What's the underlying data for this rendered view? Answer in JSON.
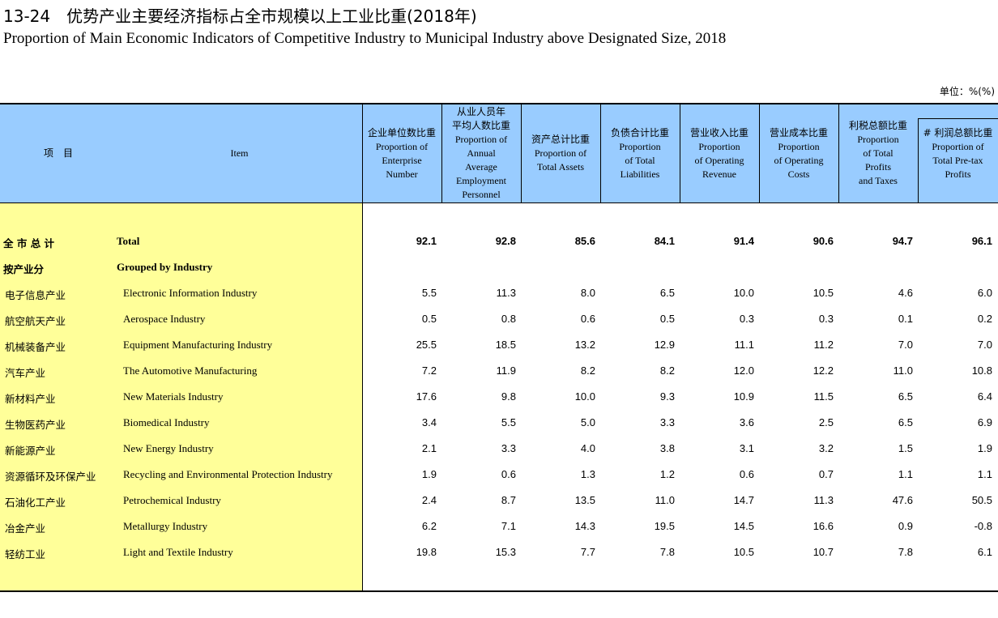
{
  "title_cn": "13-24　优势产业主要经济指标占全市规模以上工业比重(2018年)",
  "title_en": "Proportion of Main Economic Indicators of Competitive Industry to Municipal Industry above Designated Size, 2018",
  "unit": "单位：%(%)",
  "header": {
    "item_cn": "项　目",
    "item_en": "Item",
    "columns": [
      {
        "cn": "企业单位数比重",
        "en": "Proportion of\nEnterprise\nNumber"
      },
      {
        "cn": "从业人员年\n平均人数比重",
        "en": "Proportion of\nAnnual\nAverage\nEmployment\nPersonnel"
      },
      {
        "cn": "资产总计比重",
        "en": "Proportion of\nTotal Assets"
      },
      {
        "cn": "负债合计比重",
        "en": "Proportion\nof Total\nLiabilities"
      },
      {
        "cn": "营业收入比重",
        "en": "Proportion\nof Operating\nRevenue"
      },
      {
        "cn": "营业成本比重",
        "en": "Proportion\nof Operating\nCosts"
      },
      {
        "cn": "利税总额比重",
        "en": "Proportion\nof Total\nProfits\nand Taxes"
      },
      {
        "cn": "# 利润总额比重",
        "en": "Proportion of\nTotal Pre-tax\nProfits"
      }
    ]
  },
  "rows": [
    {
      "cn": "全 市 总 计",
      "en": "Total",
      "level": 0,
      "values": [
        "92.1",
        "92.8",
        "85.6",
        "84.1",
        "91.4",
        "90.6",
        "94.7",
        "96.1"
      ]
    },
    {
      "cn": "按产业分",
      "en": "Grouped by Industry",
      "level": 0,
      "values": [
        "",
        "",
        "",
        "",
        "",
        "",
        "",
        ""
      ]
    },
    {
      "cn": "电子信息产业",
      "en": "Electronic Information Industry",
      "level": 1,
      "values": [
        "5.5",
        "11.3",
        "8.0",
        "6.5",
        "10.0",
        "10.5",
        "4.6",
        "6.0"
      ]
    },
    {
      "cn": "航空航天产业",
      "en": "Aerospace Industry",
      "level": 1,
      "values": [
        "0.5",
        "0.8",
        "0.6",
        "0.5",
        "0.3",
        "0.3",
        "0.1",
        "0.2"
      ]
    },
    {
      "cn": "机械装备产业",
      "en": "Equipment Manufacturing Industry",
      "level": 1,
      "values": [
        "25.5",
        "18.5",
        "13.2",
        "12.9",
        "11.1",
        "11.2",
        "7.0",
        "7.0"
      ]
    },
    {
      "cn": "汽车产业",
      "en": "The Automotive Manufacturing",
      "level": 1,
      "values": [
        "7.2",
        "11.9",
        "8.2",
        "8.2",
        "12.0",
        "12.2",
        "11.0",
        "10.8"
      ]
    },
    {
      "cn": "新材料产业",
      "en": "New Materials Industry",
      "level": 1,
      "values": [
        "17.6",
        "9.8",
        "10.0",
        "9.3",
        "10.9",
        "11.5",
        "6.5",
        "6.4"
      ]
    },
    {
      "cn": "生物医药产业",
      "en": "Biomedical Industry",
      "level": 1,
      "values": [
        "3.4",
        "5.5",
        "5.0",
        "3.3",
        "3.6",
        "2.5",
        "6.5",
        "6.9"
      ]
    },
    {
      "cn": "新能源产业",
      "en": "New Energy Industry",
      "level": 1,
      "values": [
        "2.1",
        "3.3",
        "4.0",
        "3.8",
        "3.1",
        "3.2",
        "1.5",
        "1.9"
      ]
    },
    {
      "cn": "资源循环及环保产业",
      "en": "Recycling and Environmental Protection Industry",
      "level": 1,
      "values": [
        "1.9",
        "0.6",
        "1.3",
        "1.2",
        "0.6",
        "0.7",
        "1.1",
        "1.1"
      ]
    },
    {
      "cn": "石油化工产业",
      "en": "Petrochemical Industry",
      "level": 1,
      "values": [
        "2.4",
        "8.7",
        "13.5",
        "11.0",
        "14.7",
        "11.3",
        "47.6",
        "50.5"
      ]
    },
    {
      "cn": "冶金产业",
      "en": "Metallurgy Industry",
      "level": 1,
      "values": [
        "6.2",
        "7.1",
        "14.3",
        "19.5",
        "14.5",
        "16.6",
        "0.9",
        "-0.8"
      ]
    },
    {
      "cn": "轻纺工业",
      "en": "Light and Textile Industry",
      "level": 1,
      "values": [
        "19.8",
        "15.3",
        "7.7",
        "7.8",
        "10.5",
        "10.7",
        "7.8",
        "6.1"
      ]
    }
  ],
  "colors": {
    "header_bg": "#99ccff",
    "stub_bg": "#ffff99"
  }
}
